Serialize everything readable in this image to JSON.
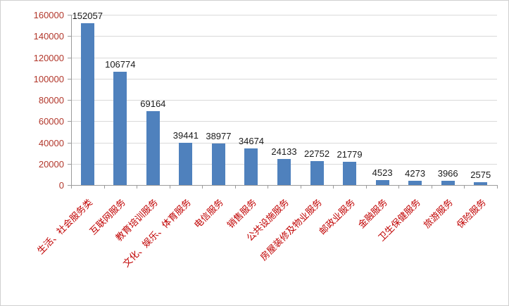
{
  "chart_data": {
    "type": "bar",
    "categories": [
      "生活、社会服务类",
      "互联网服务",
      "教育培训服务",
      "文化、娱乐、体育服务",
      "电信服务",
      "销售服务",
      "公共设施服务",
      "房屋装修及物业服务",
      "邮政业服务",
      "金融服务",
      "卫生保健服务",
      "旅游服务",
      "保险服务"
    ],
    "values": [
      152057,
      106774,
      69164,
      39441,
      38977,
      34674,
      24133,
      22752,
      21779,
      4523,
      4273,
      3966,
      2575
    ],
    "data_labels": [
      "152057",
      "106774",
      "69164",
      "39441",
      "38977",
      "34674",
      "24133",
      "22752",
      "21779",
      "4523",
      "4273",
      "3966",
      "2575"
    ],
    "title": "",
    "xlabel": "",
    "ylabel": "",
    "ylim": [
      0,
      160000
    ],
    "ytick_step": 20000,
    "ytick_labels": [
      "0",
      "20000",
      "40000",
      "60000",
      "80000",
      "100000",
      "120000",
      "140000",
      "160000"
    ],
    "grid": true,
    "legend_position": "none",
    "colors": {
      "bar": "#4f81bd",
      "value_label": "#1a1a1a",
      "axis_tick_label": "#b2372b",
      "category_label": "#c00000",
      "gridline": "#d9d9d9",
      "axis_line": "#9b9b9b"
    }
  }
}
